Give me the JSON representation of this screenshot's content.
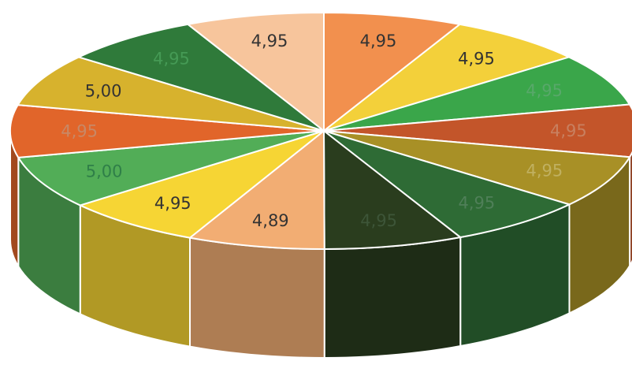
{
  "chart_data": {
    "type": "pie",
    "title": "",
    "categories": [
      "",
      "",
      "",
      "",
      "",
      "",
      "",
      "",
      "",
      "",
      "",
      "",
      "",
      ""
    ],
    "values": [
      4.95,
      4.95,
      4.95,
      4.95,
      4.95,
      4.95,
      4.95,
      4.89,
      4.95,
      5.0,
      4.95,
      5.0,
      4.95,
      4.95
    ],
    "labels": [
      "4,95",
      "4,95",
      "4,95",
      "4,95",
      "4,95",
      "4,95",
      "4,95",
      "4,89",
      "4,95",
      "5,00",
      "4,95",
      "5,00",
      "4,95",
      "4,95"
    ],
    "colors": [
      "#f2904e",
      "#f3d03a",
      "#3aa64a",
      "#c3552a",
      "#a89026",
      "#2e6b35",
      "#2a3d1e",
      "#f2ad73",
      "#f6d534",
      "#52ad57",
      "#e1652a",
      "#d7b22d",
      "#2f7a3a",
      "#f7c59c"
    ],
    "label_colors": [
      "#333333",
      "#333333",
      "#58a86a",
      "#c88060",
      "#c0b060",
      "#4f7f58",
      "#3d5538",
      "#333333",
      "#333333",
      "#2f7f48",
      "#c88866",
      "#333333",
      "#459a55",
      "#333333"
    ],
    "legend": "none",
    "view": "3d-tilted"
  }
}
